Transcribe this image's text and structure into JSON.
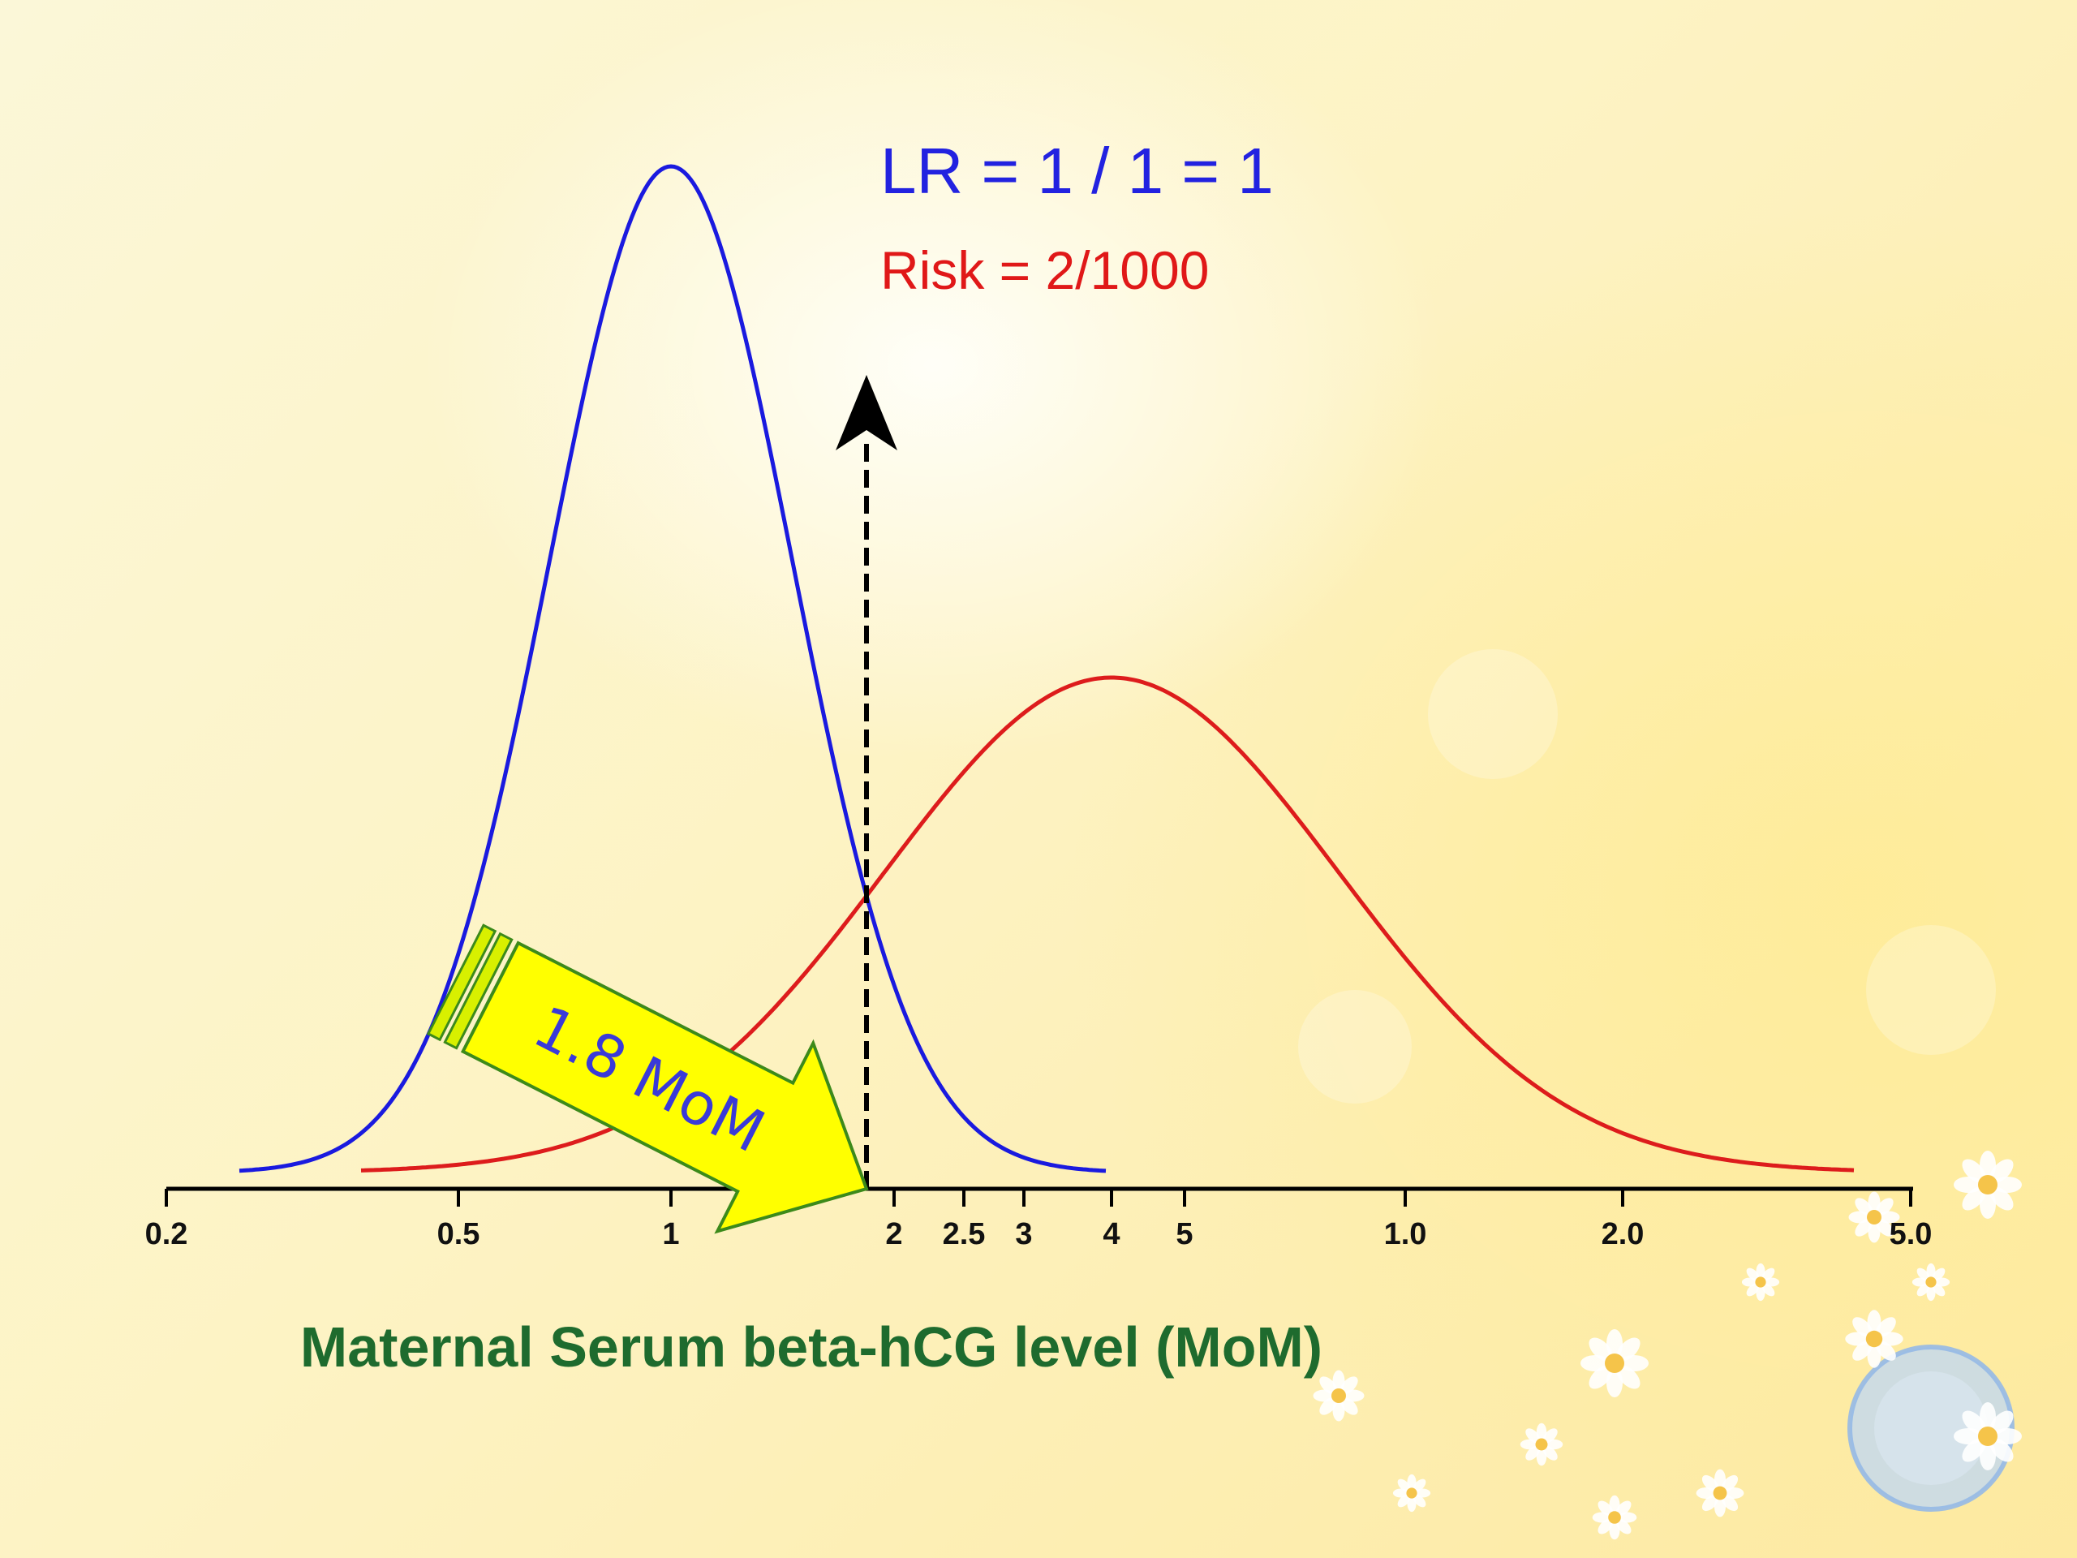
{
  "chart_data": {
    "type": "line",
    "title": "LR = 1 / 1 = 1",
    "subtitle": "Risk = 2/1000",
    "xlabel": "Maternal Serum beta-hCG level (MoM)",
    "ylabel": "",
    "x_scale": "log",
    "x_ticks": [
      "0.2",
      "0.5",
      "1",
      "2",
      "2.5",
      "3",
      "4",
      "5",
      "1.0",
      "2.0",
      "5.0"
    ],
    "series": [
      {
        "color": "#1a1adf",
        "peak_x": 1.0,
        "relative_height": 1.0
      },
      {
        "color": "#dd1c1c",
        "peak_x": 4.0,
        "relative_height": 0.5
      }
    ],
    "marker": {
      "label": "1.8 MoM",
      "x": 1.8,
      "line_style": "dashed",
      "arrow_color": "#ffff00"
    },
    "colors": {
      "title": "#2222e0",
      "subtitle": "#e01818",
      "xlabel": "#1e6b2e"
    }
  }
}
